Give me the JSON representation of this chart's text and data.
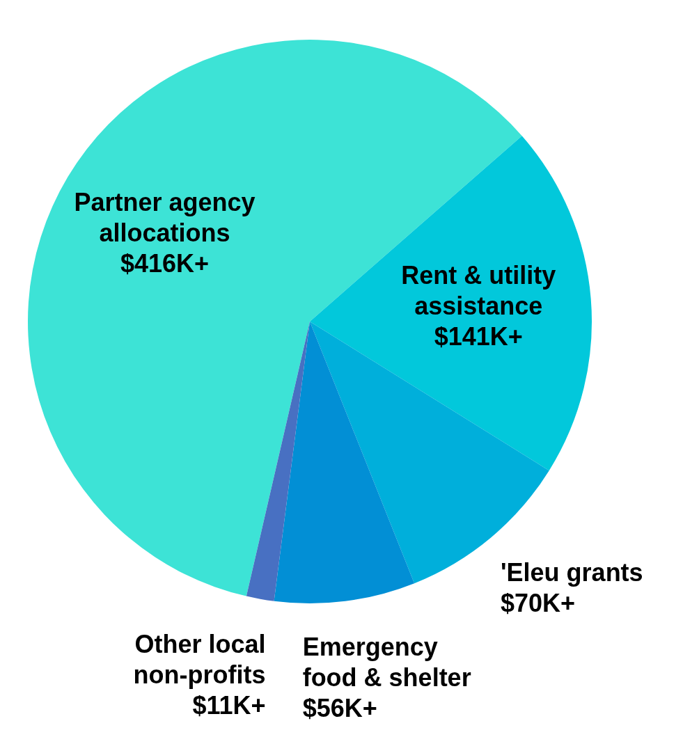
{
  "chart_data": {
    "type": "pie",
    "categories": [
      "Partner agency allocations",
      "Rent & utility assistance",
      "'Eleu grants",
      "Emergency food & shelter",
      "Other local non-profits"
    ],
    "values": [
      416,
      141,
      70,
      56,
      11
    ],
    "value_labels": [
      "$416K+",
      "$141K+",
      "$70K+",
      "$56K+",
      "$11K+"
    ],
    "colors": [
      "#3de3d6",
      "#02c8db",
      "#00afdb",
      "#028fd5",
      "#4870c2"
    ]
  }
}
